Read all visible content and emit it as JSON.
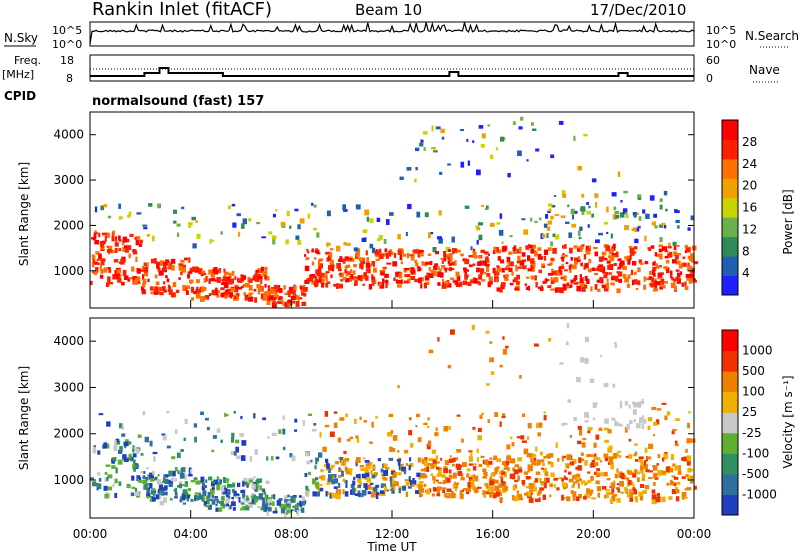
{
  "header": {
    "site": "Rankin Inlet (fitACF)",
    "beam": "Beam 10",
    "date": "17/Dec/2010"
  },
  "noise_panel": {
    "left_label": "N.Sky",
    "right_label": "N.Search",
    "left_ticks": [
      "10^5",
      "10^0"
    ],
    "right_ticks": [
      "10^5",
      "10^0"
    ]
  },
  "freq_panel": {
    "left_label": "Freq.",
    "left_unit": "[MHz]",
    "right_label": "Nave",
    "left_ticks": [
      "18",
      "8"
    ],
    "right_ticks": [
      "60",
      "0"
    ]
  },
  "cpid": {
    "label": "CPID",
    "value": "normalsound (fast) 157"
  },
  "chart_data": [
    {
      "type": "heatmap",
      "name": "power",
      "ylabel": "Slant Range [km]",
      "ylim": [
        180,
        4500
      ],
      "yticks": [
        "1000",
        "2000",
        "3000",
        "4000"
      ],
      "colorbar": {
        "label": "Power [dB]",
        "ticks": [
          "4",
          "8",
          "12",
          "16",
          "20",
          "24",
          "28"
        ],
        "colors": [
          "#2020ff",
          "#1f5fb0",
          "#2e8b57",
          "#6ab04c",
          "#c8d400",
          "#f0a000",
          "#ff7000",
          "#ff2000",
          "#ff0000"
        ]
      }
    },
    {
      "type": "heatmap",
      "name": "velocity",
      "ylabel": "Slant Range [km]",
      "ylim": [
        180,
        4500
      ],
      "yticks": [
        "1000",
        "2000",
        "3000",
        "4000"
      ],
      "xlabel": "Time UT",
      "xticks": [
        "00:00",
        "04:00",
        "08:00",
        "12:00",
        "16:00",
        "20:00",
        "00:00"
      ],
      "colorbar": {
        "label": "Velocity [m s⁻¹]",
        "ticks": [
          "1000",
          "500",
          "100",
          "25",
          "-25",
          "-100",
          "-500",
          "-1000"
        ],
        "colors": [
          "#1f3fbf",
          "#2f6fa0",
          "#2f9060",
          "#60b030",
          "#c8c8c8",
          "#f0b000",
          "#f08000",
          "#f03000",
          "#ff0000"
        ]
      }
    }
  ]
}
